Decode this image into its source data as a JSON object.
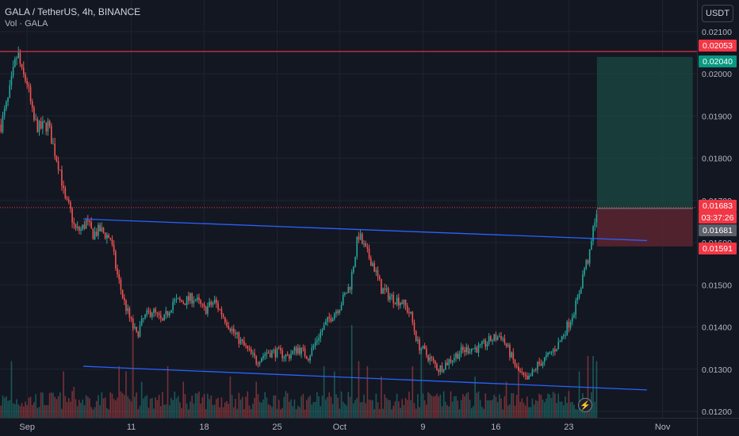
{
  "header": {
    "title": "GALA / TetherUS, 4h, BINANCE",
    "volume_label": "Vol · GALA"
  },
  "currency_button": "USDT",
  "colors": {
    "up": "#26a69a",
    "down": "#ef5350",
    "trendline": "#2962ff",
    "resistance": "#f23645",
    "background": "#131722",
    "target_zone": "#1b4a42",
    "stop_zone": "#5c2430"
  },
  "price_tags": {
    "resistance": {
      "text": "0.02053",
      "price": 0.02053,
      "color": "#f23645"
    },
    "target": {
      "text": "0.02040",
      "price": 0.0204,
      "color": "#089981"
    },
    "current": {
      "text": "0.01683",
      "price": 0.01683,
      "color": "#f23645"
    },
    "countdown": {
      "text": "03:37:26",
      "color": "#f23645"
    },
    "entry": {
      "text": "0.01681",
      "price": 0.01681,
      "color": "#5d606b"
    },
    "stop": {
      "text": "0.01591",
      "price": 0.01591,
      "color": "#f23645"
    }
  },
  "lightning_icon": "lightning-icon",
  "chart_data": {
    "type": "candlestick",
    "symbol": "GALA / TetherUS",
    "interval": "4h",
    "exchange": "BINANCE",
    "y_ticks": [
      "0.02100",
      "0.02000",
      "0.01900",
      "0.01800",
      "0.01700",
      "0.01600",
      "0.01500",
      "0.01400",
      "0.01300",
      "0.01200"
    ],
    "y_tick_values": [
      0.021,
      0.02,
      0.019,
      0.018,
      0.017,
      0.016,
      0.015,
      0.014,
      0.013,
      0.012
    ],
    "ylim": [
      0.01185,
      0.02175
    ],
    "x_ticks": [
      {
        "label": "Sep",
        "day": 0
      },
      {
        "label": "11",
        "day": 10
      },
      {
        "label": "18",
        "day": 17
      },
      {
        "label": "25",
        "day": 24
      },
      {
        "label": "Oct",
        "day": 30
      },
      {
        "label": "9",
        "day": 38
      },
      {
        "label": "16",
        "day": 45
      },
      {
        "label": "23",
        "day": 52
      },
      {
        "label": "Nov",
        "day": 61
      }
    ],
    "xlim_days": [
      -2.6,
      64.3
    ],
    "anchors": [
      [
        -2.5,
        0.0188
      ],
      [
        -1.8,
        0.0194
      ],
      [
        -1.2,
        0.0202
      ],
      [
        -0.9,
        0.0205
      ],
      [
        -0.5,
        0.02
      ],
      [
        0,
        0.0198
      ],
      [
        0.6,
        0.0189
      ],
      [
        1.2,
        0.0187
      ],
      [
        2,
        0.0188
      ],
      [
        2.6,
        0.0182
      ],
      [
        3.2,
        0.0177
      ],
      [
        3.6,
        0.017
      ],
      [
        4.1,
        0.0168
      ],
      [
        4.6,
        0.0163
      ],
      [
        5.2,
        0.0163
      ],
      [
        5.7,
        0.0165
      ],
      [
        6.3,
        0.0162
      ],
      [
        7,
        0.0163
      ],
      [
        8,
        0.0161
      ],
      [
        8.6,
        0.0153
      ],
      [
        9.3,
        0.0146
      ],
      [
        10,
        0.0141
      ],
      [
        10.5,
        0.0138
      ],
      [
        11.2,
        0.0142
      ],
      [
        12,
        0.0144
      ],
      [
        13,
        0.0141
      ],
      [
        14,
        0.0146
      ],
      [
        15,
        0.0146
      ],
      [
        16,
        0.0147
      ],
      [
        17,
        0.0144
      ],
      [
        18,
        0.0146
      ],
      [
        19,
        0.0142
      ],
      [
        20,
        0.0138
      ],
      [
        21,
        0.0135
      ],
      [
        22,
        0.0132
      ],
      [
        23,
        0.0134
      ],
      [
        24,
        0.0134
      ],
      [
        25,
        0.0133
      ],
      [
        26,
        0.0135
      ],
      [
        27,
        0.0133
      ],
      [
        28,
        0.0138
      ],
      [
        29,
        0.0142
      ],
      [
        30,
        0.0145
      ],
      [
        31,
        0.015
      ],
      [
        31.8,
        0.0162
      ],
      [
        32.5,
        0.0158
      ],
      [
        33.2,
        0.0155
      ],
      [
        34,
        0.0149
      ],
      [
        35,
        0.0147
      ],
      [
        36,
        0.0146
      ],
      [
        36.8,
        0.0143
      ],
      [
        37.5,
        0.0136
      ],
      [
        38.5,
        0.0133
      ],
      [
        39.5,
        0.013
      ],
      [
        40.5,
        0.0132
      ],
      [
        41.5,
        0.0134
      ],
      [
        42.5,
        0.0135
      ],
      [
        43.5,
        0.0135
      ],
      [
        44.5,
        0.0137
      ],
      [
        45.5,
        0.0138
      ],
      [
        46.3,
        0.0134
      ],
      [
        47,
        0.013
      ],
      [
        48,
        0.0127
      ],
      [
        49,
        0.0131
      ],
      [
        50,
        0.0133
      ],
      [
        51,
        0.0136
      ],
      [
        52,
        0.0141
      ],
      [
        52.8,
        0.0146
      ],
      [
        53.5,
        0.0154
      ],
      [
        54,
        0.0157
      ],
      [
        54.5,
        0.0166
      ],
      [
        54.8,
        0.01683
      ]
    ],
    "volume_spikes": [
      {
        "day": -1.5,
        "v": 0.55
      },
      {
        "day": 3.5,
        "v": 0.45
      },
      {
        "day": 4.5,
        "v": 0.3
      },
      {
        "day": 8.8,
        "v": 0.5
      },
      {
        "day": 9.5,
        "v": 0.45
      },
      {
        "day": 10.2,
        "v": 1.0
      },
      {
        "day": 11,
        "v": 0.35
      },
      {
        "day": 13.5,
        "v": 0.5
      },
      {
        "day": 15,
        "v": 0.35
      },
      {
        "day": 19.5,
        "v": 0.4
      },
      {
        "day": 22,
        "v": 0.35
      },
      {
        "day": 28.5,
        "v": 0.5
      },
      {
        "day": 29.5,
        "v": 0.45
      },
      {
        "day": 31.2,
        "v": 0.9
      },
      {
        "day": 31.8,
        "v": 0.55
      },
      {
        "day": 32.6,
        "v": 0.5
      },
      {
        "day": 34,
        "v": 0.4
      },
      {
        "day": 37,
        "v": 0.5
      },
      {
        "day": 37.8,
        "v": 0.65
      },
      {
        "day": 43,
        "v": 0.4
      },
      {
        "day": 46,
        "v": 0.35
      },
      {
        "day": 47.2,
        "v": 0.5
      },
      {
        "day": 53,
        "v": 0.45
      },
      {
        "day": 53.8,
        "v": 0.6
      },
      {
        "day": 54.3,
        "v": 0.6
      },
      {
        "day": 54.7,
        "v": 0.55
      }
    ],
    "trendlines": [
      {
        "name": "upper",
        "from": {
          "day": 5.4,
          "price": 0.01656
        },
        "to": {
          "day": 59.5,
          "price": 0.01605
        }
      },
      {
        "name": "lower",
        "from": {
          "day": 5.4,
          "price": 0.01307
        },
        "to": {
          "day": 59.5,
          "price": 0.01251
        }
      }
    ],
    "resistance_level": 0.02053,
    "position": {
      "start_day": 54.7,
      "end_day": 63.9,
      "entry": 0.01681,
      "target": 0.0204,
      "stop": 0.01591
    },
    "grid": true
  }
}
